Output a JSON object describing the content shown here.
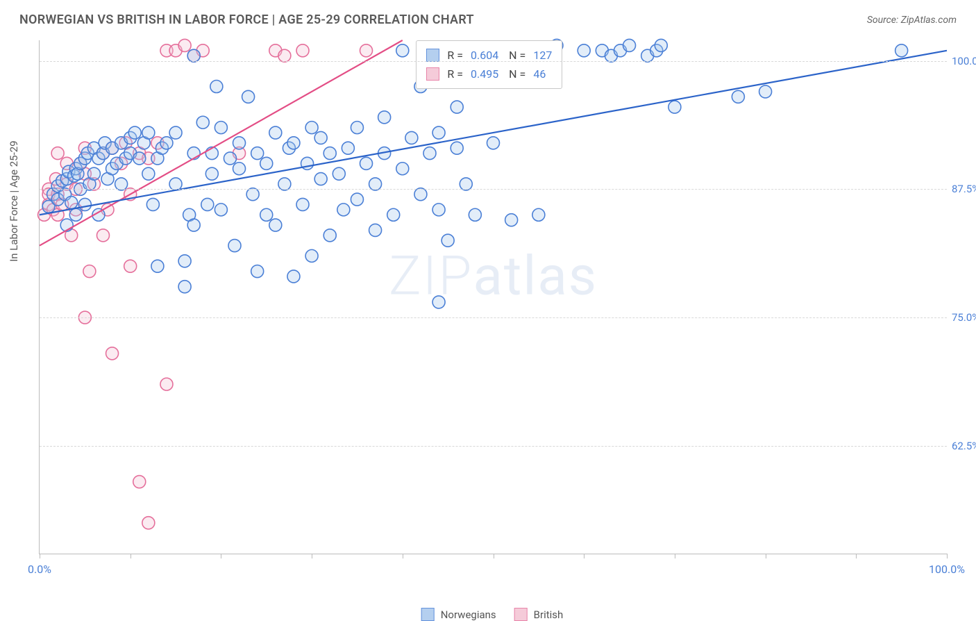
{
  "header": {
    "title": "NORWEGIAN VS BRITISH IN LABOR FORCE | AGE 25-29 CORRELATION CHART",
    "source_label": "Source: ZipAtlas.com"
  },
  "chart": {
    "type": "scatter",
    "y_axis_label": "In Labor Force | Age 25-29",
    "xlim": [
      0,
      100
    ],
    "ylim": [
      52,
      102
    ],
    "x_ticks": [
      0,
      10,
      20,
      30,
      40,
      50,
      60,
      70,
      80,
      90,
      100
    ],
    "x_tick_labels": {
      "0": "0.0%",
      "100": "100.0%"
    },
    "y_ticks": [
      62.5,
      75.0,
      87.5,
      100.0
    ],
    "y_tick_labels": [
      "62.5%",
      "75.0%",
      "87.5%",
      "100.0%"
    ],
    "grid_color": "#d8d8d8",
    "axis_color": "#bbbbbb",
    "background_color": "#ffffff",
    "tick_label_color": "#4a7fd6",
    "tick_label_fontsize": 15,
    "marker_radius": 9,
    "marker_fill_opacity": 0.33,
    "marker_stroke_width": 1.6,
    "line_width": 2.2,
    "series": {
      "norwegians": {
        "label": "Norwegians",
        "fill": "#a7c7ed",
        "stroke": "#4a7fd6",
        "line_color": "#2b63c9",
        "regression": {
          "x1": 0,
          "y1": 85.0,
          "x2": 100,
          "y2": 101.0
        },
        "stats": {
          "R": "0.604",
          "N": "127"
        },
        "points": [
          [
            1,
            85.8
          ],
          [
            1.5,
            87.0
          ],
          [
            2,
            86.5
          ],
          [
            2,
            87.8
          ],
          [
            2.5,
            88.3
          ],
          [
            2.8,
            87.0
          ],
          [
            3,
            88.5
          ],
          [
            3,
            84.0
          ],
          [
            3.2,
            89.2
          ],
          [
            3.5,
            86.2
          ],
          [
            3.8,
            88.8
          ],
          [
            4,
            89.5
          ],
          [
            4,
            85.0
          ],
          [
            4.2,
            89.0
          ],
          [
            4.5,
            90.0
          ],
          [
            4.5,
            87.5
          ],
          [
            5,
            90.5
          ],
          [
            5,
            86.0
          ],
          [
            5.3,
            91.0
          ],
          [
            5.5,
            88.0
          ],
          [
            6,
            91.5
          ],
          [
            6,
            89.0
          ],
          [
            6.5,
            90.5
          ],
          [
            6.5,
            85.0
          ],
          [
            7,
            91.0
          ],
          [
            7.2,
            92.0
          ],
          [
            7.5,
            88.5
          ],
          [
            8,
            91.5
          ],
          [
            8,
            89.5
          ],
          [
            8.5,
            90.0
          ],
          [
            9,
            92.0
          ],
          [
            9,
            88.0
          ],
          [
            9.5,
            90.5
          ],
          [
            10,
            91.0
          ],
          [
            10,
            92.5
          ],
          [
            10.5,
            93.0
          ],
          [
            11,
            90.5
          ],
          [
            11.5,
            92.0
          ],
          [
            12,
            93.0
          ],
          [
            12,
            89.0
          ],
          [
            12.5,
            86.0
          ],
          [
            13,
            80.0
          ],
          [
            13,
            90.5
          ],
          [
            13.5,
            91.5
          ],
          [
            14,
            92.0
          ],
          [
            15,
            88.0
          ],
          [
            15,
            93.0
          ],
          [
            16,
            78.0
          ],
          [
            16,
            80.5
          ],
          [
            16.5,
            85.0
          ],
          [
            17,
            84.0
          ],
          [
            17,
            91.0
          ],
          [
            17,
            100.5
          ],
          [
            18,
            94.0
          ],
          [
            18.5,
            86.0
          ],
          [
            19,
            91.0
          ],
          [
            19,
            89.0
          ],
          [
            19.5,
            97.5
          ],
          [
            20,
            93.5
          ],
          [
            20,
            85.5
          ],
          [
            21,
            90.5
          ],
          [
            21.5,
            82.0
          ],
          [
            22,
            89.5
          ],
          [
            22,
            92.0
          ],
          [
            23,
            96.5
          ],
          [
            23.5,
            87.0
          ],
          [
            24,
            91.0
          ],
          [
            24,
            79.5
          ],
          [
            25,
            90.0
          ],
          [
            25,
            85.0
          ],
          [
            26,
            84.0
          ],
          [
            26,
            93.0
          ],
          [
            27,
            88.0
          ],
          [
            27.5,
            91.5
          ],
          [
            28,
            79.0
          ],
          [
            28,
            92.0
          ],
          [
            29,
            86.0
          ],
          [
            29.5,
            90.0
          ],
          [
            30,
            93.5
          ],
          [
            30,
            81.0
          ],
          [
            31,
            88.5
          ],
          [
            31,
            92.5
          ],
          [
            32,
            91.0
          ],
          [
            32,
            83.0
          ],
          [
            33,
            89.0
          ],
          [
            33.5,
            85.5
          ],
          [
            34,
            91.5
          ],
          [
            35,
            86.5
          ],
          [
            35,
            93.5
          ],
          [
            36,
            90.0
          ],
          [
            37,
            88.0
          ],
          [
            37,
            83.5
          ],
          [
            38,
            94.5
          ],
          [
            38,
            91.0
          ],
          [
            39,
            85.0
          ],
          [
            40,
            101.0
          ],
          [
            40,
            89.5
          ],
          [
            41,
            92.5
          ],
          [
            42,
            87.0
          ],
          [
            42,
            97.5
          ],
          [
            43,
            91.0
          ],
          [
            44,
            85.5
          ],
          [
            44,
            76.5
          ],
          [
            44,
            93.0
          ],
          [
            45,
            82.5
          ],
          [
            46,
            91.5
          ],
          [
            46,
            95.5
          ],
          [
            47,
            88.0
          ],
          [
            48,
            85.0
          ],
          [
            50,
            92.0
          ],
          [
            52,
            84.5
          ],
          [
            55,
            85.0
          ],
          [
            55,
            101.0
          ],
          [
            56,
            100.5
          ],
          [
            57,
            101.5
          ],
          [
            60,
            101.0
          ],
          [
            62,
            101.0
          ],
          [
            63,
            100.5
          ],
          [
            64,
            101.0
          ],
          [
            65,
            101.5
          ],
          [
            67,
            100.5
          ],
          [
            68,
            101.0
          ],
          [
            68.5,
            101.5
          ],
          [
            70,
            95.5
          ],
          [
            77,
            96.5
          ],
          [
            80,
            97.0
          ],
          [
            95,
            101.0
          ]
        ]
      },
      "british": {
        "label": "British",
        "fill": "#f4c2d3",
        "stroke": "#e56f9b",
        "line_color": "#e34d85",
        "regression": {
          "x1": 0,
          "y1": 82.0,
          "x2": 40,
          "y2": 102.0
        },
        "stats": {
          "R": "0.495",
          "N": "46"
        },
        "points": [
          [
            0.5,
            85.0
          ],
          [
            1,
            86.0
          ],
          [
            1,
            87.5
          ],
          [
            1,
            87.0
          ],
          [
            1.5,
            85.5
          ],
          [
            1.8,
            88.5
          ],
          [
            2,
            85.0
          ],
          [
            2,
            87.0
          ],
          [
            2,
            91.0
          ],
          [
            2.5,
            86.0
          ],
          [
            3,
            88.0
          ],
          [
            3,
            90.0
          ],
          [
            3.5,
            83.0
          ],
          [
            4,
            85.5
          ],
          [
            4,
            87.5
          ],
          [
            4.5,
            90.0
          ],
          [
            5,
            75.0
          ],
          [
            5,
            89.0
          ],
          [
            5,
            91.5
          ],
          [
            5.5,
            79.5
          ],
          [
            6,
            88.0
          ],
          [
            7,
            91.0
          ],
          [
            7,
            83.0
          ],
          [
            7.5,
            85.5
          ],
          [
            8,
            91.5
          ],
          [
            8,
            71.5
          ],
          [
            9,
            90.0
          ],
          [
            9.5,
            92.0
          ],
          [
            10,
            80.0
          ],
          [
            10,
            87.0
          ],
          [
            11,
            59.0
          ],
          [
            11,
            91.0
          ],
          [
            12,
            90.5
          ],
          [
            12,
            55.0
          ],
          [
            13,
            92.0
          ],
          [
            14,
            68.5
          ],
          [
            14,
            101.0
          ],
          [
            15,
            101.0
          ],
          [
            16,
            101.5
          ],
          [
            17,
            100.5
          ],
          [
            18,
            101.0
          ],
          [
            22,
            91.0
          ],
          [
            26,
            101.0
          ],
          [
            27,
            100.5
          ],
          [
            29,
            101.0
          ],
          [
            36,
            101.0
          ]
        ]
      }
    },
    "legend": {
      "items": [
        "norwegians",
        "british"
      ]
    },
    "stats_box": {
      "left_pct": 41.5,
      "top_pct": 0.0
    },
    "watermark": "ZIPatlas"
  }
}
